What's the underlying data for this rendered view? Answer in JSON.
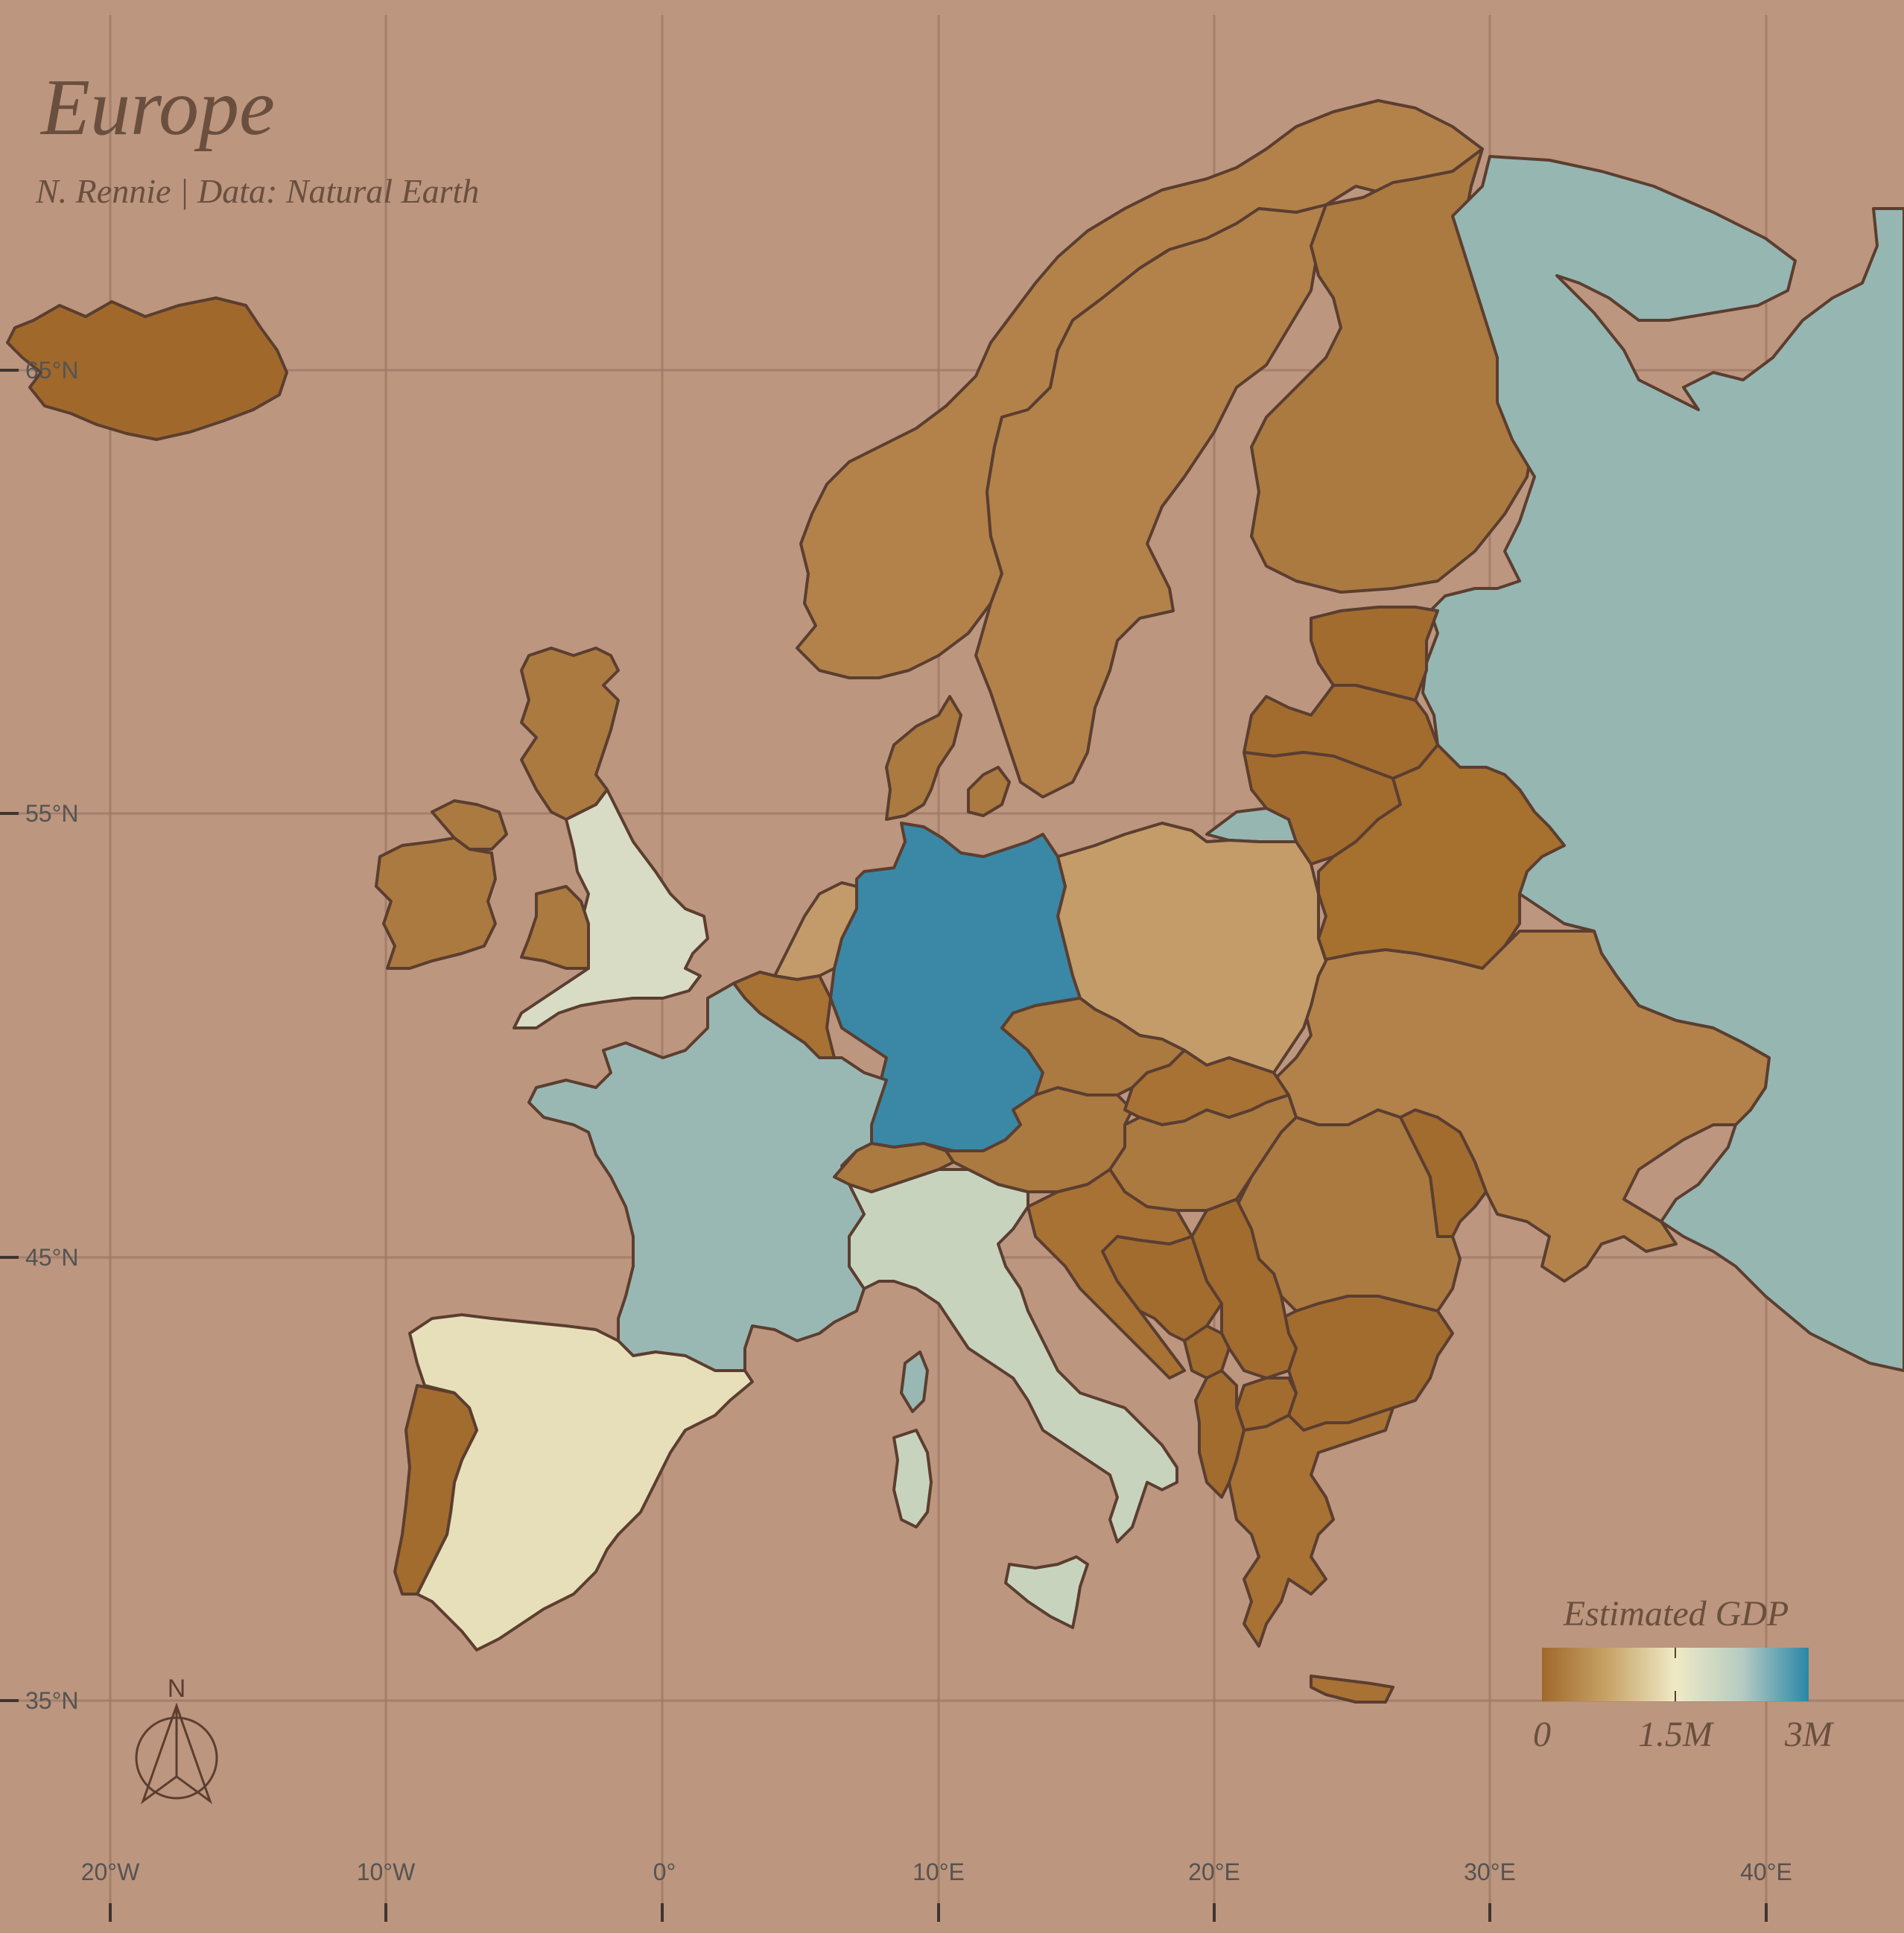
{
  "map": {
    "title": "Europe",
    "subtitle": "N. Rennie | Data: Natural Earth",
    "background": "#bc967e",
    "outline_color": "#5b3e30",
    "longitude_labels": [
      "20°W",
      "10°W",
      "0°",
      "10°E",
      "20°E",
      "30°E",
      "40°E"
    ],
    "latitude_labels": [
      "65°N",
      "55°N",
      "45°N",
      "35°N"
    ],
    "compass_label": "N"
  },
  "legend": {
    "title": "Estimated GDP",
    "labels": [
      "0",
      "1.5M",
      "3M"
    ],
    "gradient": [
      "#a0692b",
      "#c8a468",
      "#efeac5",
      "#b6cbc1",
      "#2a87a8"
    ]
  },
  "countries": [
    {
      "name": "Iceland",
      "color": "#a0692b"
    },
    {
      "name": "Norway",
      "color": "#b3824a"
    },
    {
      "name": "Sweden",
      "color": "#b3824a"
    },
    {
      "name": "Finland",
      "color": "#ab7a40"
    },
    {
      "name": "Russia",
      "color": "#96b6b2"
    },
    {
      "name": "Estonia",
      "color": "#a26c2f"
    },
    {
      "name": "Latvia",
      "color": "#a26c2f"
    },
    {
      "name": "Lithuania",
      "color": "#a26c2f"
    },
    {
      "name": "Belarus",
      "color": "#a6702f"
    },
    {
      "name": "Ukraine",
      "color": "#b3824a"
    },
    {
      "name": "Moldova",
      "color": "#a26c2f"
    },
    {
      "name": "Poland",
      "color": "#c49c69"
    },
    {
      "name": "Germany",
      "color": "#3a88a6"
    },
    {
      "name": "Denmark",
      "color": "#ab7a40"
    },
    {
      "name": "Netherlands",
      "color": "#c39a6a"
    },
    {
      "name": "Belgium",
      "color": "#a87234"
    },
    {
      "name": "France",
      "color": "#9ab8b3"
    },
    {
      "name": "Spain",
      "color": "#e7dfb9"
    },
    {
      "name": "Portugal",
      "color": "#a26c2f"
    },
    {
      "name": "United Kingdom",
      "color": "#d9dcc4"
    },
    {
      "name": "Scotland",
      "color": "#ab7a40"
    },
    {
      "name": "Ireland",
      "color": "#ab7a40"
    },
    {
      "name": "Italy",
      "color": "#c8d3bd"
    },
    {
      "name": "Switzerland",
      "color": "#ab7a40"
    },
    {
      "name": "Austria",
      "color": "#ab7a40"
    },
    {
      "name": "Czechia",
      "color": "#ab7a40"
    },
    {
      "name": "Slovakia",
      "color": "#a87234"
    },
    {
      "name": "Hungary",
      "color": "#ab7a40"
    },
    {
      "name": "Romania",
      "color": "#ab7a40"
    },
    {
      "name": "Bulgaria",
      "color": "#a26c2f"
    },
    {
      "name": "Serbia",
      "color": "#a26c2f"
    },
    {
      "name": "Croatia",
      "color": "#a87234"
    },
    {
      "name": "Bosnia and Herzegovina",
      "color": "#a26c2f"
    },
    {
      "name": "Greece",
      "color": "#a87234"
    },
    {
      "name": "Albania",
      "color": "#a26c2f"
    }
  ]
}
